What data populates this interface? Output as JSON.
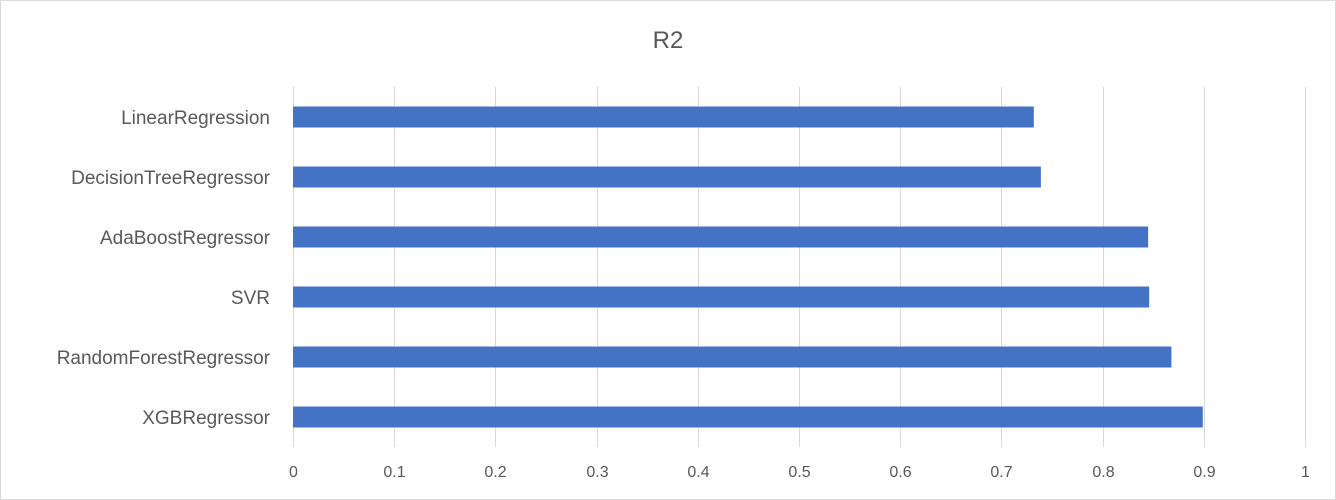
{
  "chart_data": {
    "type": "bar",
    "orientation": "horizontal",
    "title": "R2",
    "xlabel": "",
    "ylabel": "",
    "categories": [
      "LinearRegression",
      "DecisionTreeRegressor",
      "AdaBoostRegressor",
      "SVR",
      "RandomForestRegressor",
      "XGBRegressor"
    ],
    "series": [
      {
        "values": [
          0.732,
          0.739,
          0.845,
          0.846,
          0.868,
          0.899
        ],
        "color": "#4472c4"
      }
    ],
    "xlim": [
      0,
      1
    ],
    "x_ticks": [
      "0",
      "0.1",
      "0.2",
      "0.3",
      "0.4",
      "0.5",
      "0.6",
      "0.7",
      "0.8",
      "0.9",
      "1"
    ],
    "grid": true,
    "legend": "none"
  }
}
